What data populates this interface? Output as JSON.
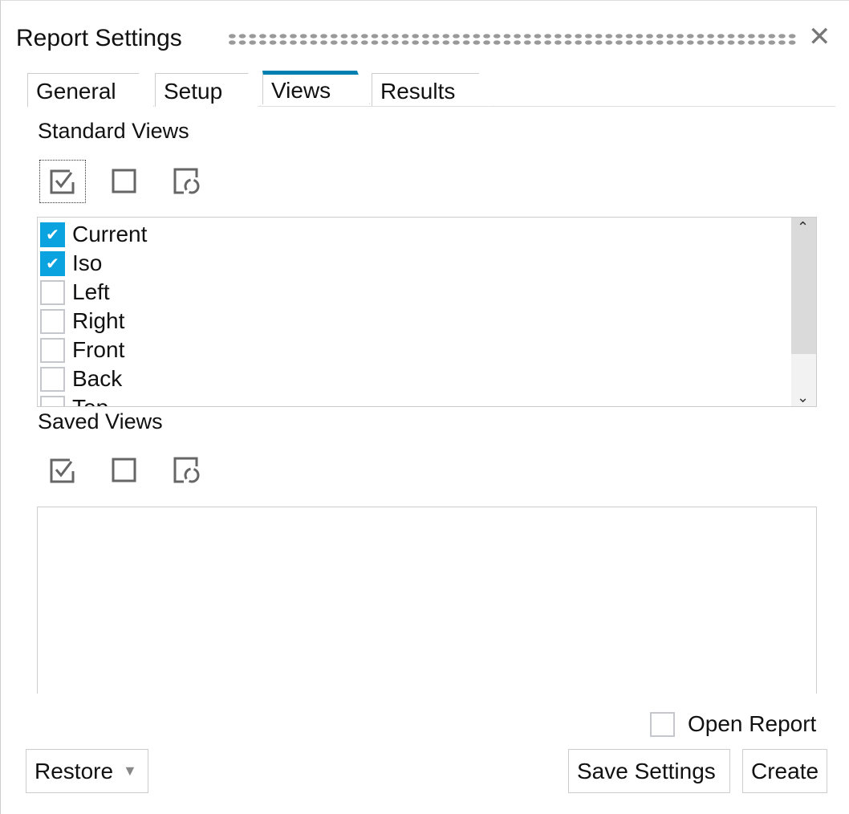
{
  "window": {
    "title": "Report Settings",
    "close_icon": "close-icon"
  },
  "tabs": [
    {
      "label": "General"
    },
    {
      "label": "Setup"
    },
    {
      "label": "Views",
      "active": true
    },
    {
      "label": "Results"
    }
  ],
  "standard_views": {
    "label": "Standard Views",
    "items": [
      {
        "label": "Current",
        "checked": true
      },
      {
        "label": "Iso",
        "checked": true
      },
      {
        "label": "Left",
        "checked": false
      },
      {
        "label": "Right",
        "checked": false
      },
      {
        "label": "Front",
        "checked": false
      },
      {
        "label": "Back",
        "checked": false
      },
      {
        "label": "Top",
        "checked": false
      }
    ]
  },
  "saved_views": {
    "label": "Saved Views",
    "items": []
  },
  "toolbar_icons": [
    "check-all-icon",
    "uncheck-all-icon",
    "refresh-icon"
  ],
  "open_report": {
    "label": "Open Report",
    "checked": false
  },
  "buttons": {
    "restore": "Restore",
    "save_settings": "Save Settings",
    "create": "Create"
  },
  "colors": {
    "accent": "#0080b0",
    "checkbox_checked": "#0aa3e0"
  }
}
